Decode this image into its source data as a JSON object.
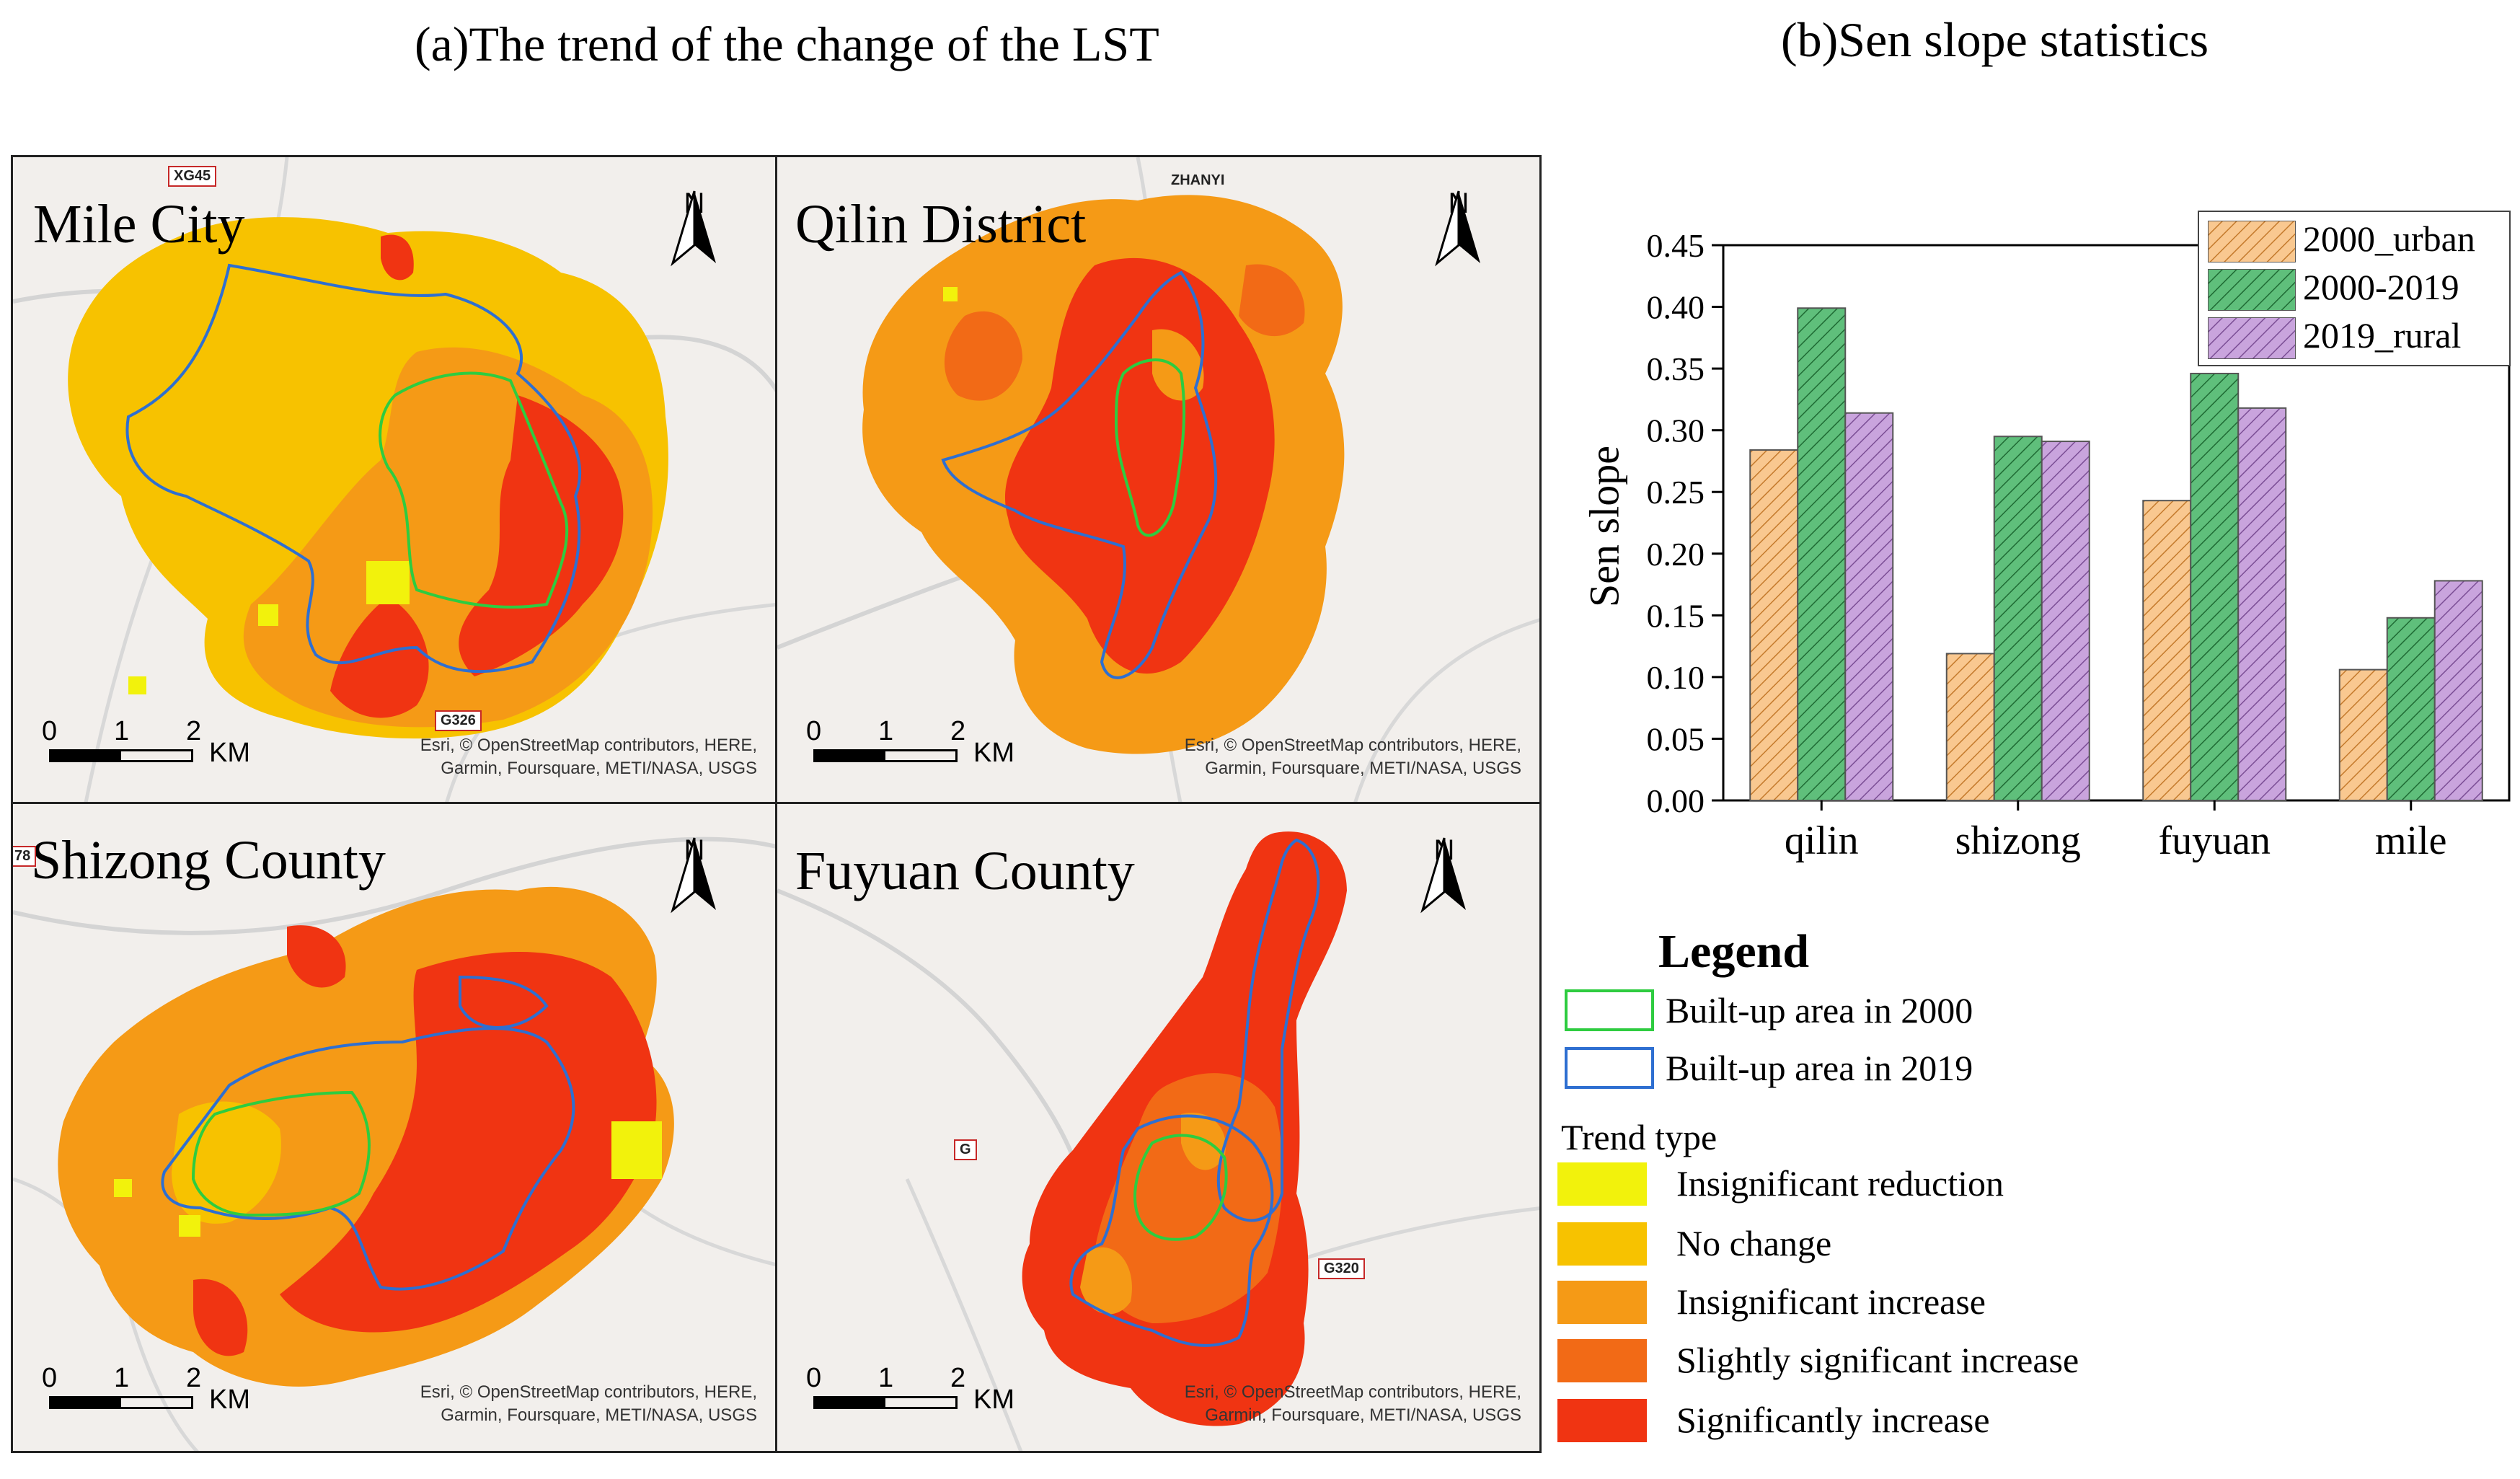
{
  "titles": {
    "panel_a": "(a)The trend of the change of the LST",
    "panel_b": "(b)Sen slope statistics"
  },
  "maps": [
    {
      "name": "Mile City",
      "north": "N",
      "scale_ticks": [
        "0",
        "1",
        "2"
      ],
      "scale_unit": "KM",
      "attribution": [
        "Esri, © OpenStreetMap contributors, HERE,",
        "Garmin, Foursquare, METI/NASA, USGS"
      ],
      "roads": [
        "XG45",
        "G326"
      ]
    },
    {
      "name": "Qilin District",
      "north": "N",
      "scale_ticks": [
        "0",
        "1",
        "2"
      ],
      "scale_unit": "KM",
      "attribution": [
        "Esri, © OpenStreetMap contributors, HERE,",
        "Garmin, Foursquare, METI/NASA, USGS"
      ],
      "roads": [
        "ZHANYI"
      ]
    },
    {
      "name": "Shizong County",
      "north": "N",
      "scale_ticks": [
        "0",
        "1",
        "2"
      ],
      "scale_unit": "KM",
      "attribution": [
        "Esri, © OpenStreetMap contributors, HERE,",
        "Garmin, Foursquare, METI/NASA, USGS"
      ],
      "roads": [
        "78"
      ]
    },
    {
      "name": "Fuyuan County",
      "north": "N",
      "scale_ticks": [
        "0",
        "1",
        "2"
      ],
      "scale_unit": "KM",
      "attribution": [
        "Esri, © OpenStreetMap contributors, HERE,",
        "Garmin, Foursquare, METI/NASA, USGS"
      ],
      "roads": [
        "G",
        "G320"
      ]
    }
  ],
  "legend": {
    "title": "Legend",
    "boundaries": [
      {
        "label": "Built-up area in 2000",
        "color": "#2ecc40"
      },
      {
        "label": "Built-up area in 2019",
        "color": "#2e6fd1"
      }
    ],
    "trend_title": "Trend type",
    "trends": [
      {
        "label": "Insignificant reduction",
        "color": "#f2f20c"
      },
      {
        "label": "No change",
        "color": "#f7c200"
      },
      {
        "label": "Insignificant increase",
        "color": "#f59a16"
      },
      {
        "label": "Slightly significant increase",
        "color": "#f26a16"
      },
      {
        "label": "Significantly increase",
        "color": "#f03412"
      }
    ]
  },
  "chart_data": {
    "type": "bar",
    "title": "",
    "xlabel": "",
    "ylabel": "Sen slope",
    "ylim": [
      0,
      0.45
    ],
    "yticks": [
      "0.00",
      "0.05",
      "0.10",
      "0.15",
      "0.20",
      "0.25",
      "0.30",
      "0.35",
      "0.40",
      "0.45"
    ],
    "categories": [
      "qilin",
      "shizong",
      "fuyuan",
      "mile"
    ],
    "legend_position": "top-right",
    "series": [
      {
        "name": "2000_urban",
        "values": [
          0.284,
          0.119,
          0.243,
          0.106
        ],
        "color": "#f9c890"
      },
      {
        "name": "2000-2019",
        "values": [
          0.399,
          0.295,
          0.346,
          0.148
        ],
        "color": "#5fbf7b"
      },
      {
        "name": "2019_rural",
        "values": [
          0.314,
          0.291,
          0.318,
          0.178
        ],
        "color": "#c9a4dd"
      }
    ]
  }
}
